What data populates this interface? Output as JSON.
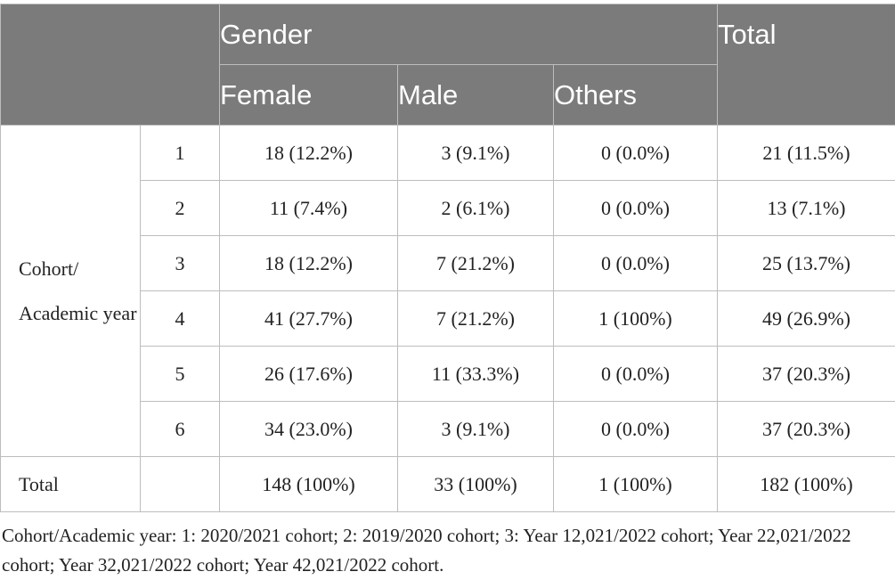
{
  "table": {
    "header": {
      "gender": "Gender",
      "total": "Total",
      "female": "Female",
      "male": "Male",
      "others": "Others"
    },
    "row_group_label": "Cohort/ Academic year",
    "rows": [
      {
        "year": "1",
        "female": "18 (12.2%)",
        "male": "3 (9.1%)",
        "others": "0 (0.0%)",
        "total": "21 (11.5%)"
      },
      {
        "year": "2",
        "female": "11 (7.4%)",
        "male": "2 (6.1%)",
        "others": "0 (0.0%)",
        "total": "13 (7.1%)"
      },
      {
        "year": "3",
        "female": "18 (12.2%)",
        "male": "7 (21.2%)",
        "others": "0 (0.0%)",
        "total": "25 (13.7%)"
      },
      {
        "year": "4",
        "female": "41 (27.7%)",
        "male": "7 (21.2%)",
        "others": "1 (100%)",
        "total": "49 (26.9%)"
      },
      {
        "year": "5",
        "female": "26 (17.6%)",
        "male": "11 (33.3%)",
        "others": "0 (0.0%)",
        "total": "37 (20.3%)"
      },
      {
        "year": "6",
        "female": "34 (23.0%)",
        "male": "3 (9.1%)",
        "others": "0 (0.0%)",
        "total": "37 (20.3%)"
      }
    ],
    "total_row": {
      "label": "Total",
      "female": "148 (100%)",
      "male": "33 (100%)",
      "others": "1 (100%)",
      "total": "182 (100%)"
    }
  },
  "footnote": "Cohort/Academic year: 1: 2020/2021 cohort; 2: 2019/2020 cohort; 3: Year 12,021/2022 cohort; Year 22,021/2022 cohort; Year 32,021/2022 cohort; Year 42,021/2022 cohort.",
  "colors": {
    "header_bg": "#7b7b7b",
    "header_text": "#ffffff",
    "border": "#bdbdbd"
  }
}
